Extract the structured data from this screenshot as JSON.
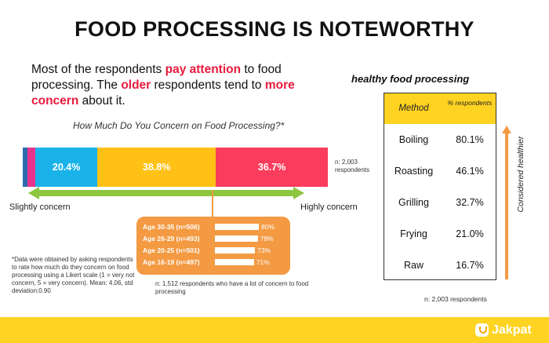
{
  "title": "FOOD PROCESSING IS NOTEWORTHY",
  "intro": {
    "p1": "Most of the respondents ",
    "h1": "pay attention",
    "p2": " to food processing. The ",
    "h2": "older",
    "p3": " respondents tend to ",
    "h3": "more concern",
    "p4": " about it."
  },
  "chart_data": [
    {
      "type": "bar",
      "title": "How Much Do You Concern on Food Processing?*",
      "stacked": true,
      "orientation": "horizontal",
      "series": [
        {
          "name": "",
          "value": 1.5,
          "label": "",
          "color": "#2b6cb0"
        },
        {
          "name": "",
          "value": 2.6,
          "label": "",
          "color": "#e8348d"
        },
        {
          "name": "",
          "value": 20.4,
          "label": "20.4%",
          "color": "#1ab3e9"
        },
        {
          "name": "",
          "value": 38.8,
          "label": "38.8%",
          "color": "#ffc115"
        },
        {
          "name": "",
          "value": 36.7,
          "label": "36.7%",
          "color": "#fb3c5c"
        }
      ],
      "note": "n: 2,003 respondents",
      "scale_left": "Slightly concern",
      "scale_right": "Highly concern"
    },
    {
      "type": "bar",
      "orientation": "horizontal",
      "categories": [
        "Age 30-35 (n=506)",
        "Age 26-29 (n=493)",
        "Age 20-25 (n=501)",
        "Age 16-19 (n=497)"
      ],
      "values": [
        80,
        78,
        73,
        71
      ],
      "labels": [
        "80%",
        "78%",
        "73%",
        "71%"
      ],
      "note": "n: 1,512 respondents who have a lot of concern to food processing"
    },
    {
      "type": "table",
      "title": "healthy food processing",
      "columns": [
        "Method",
        "% respondents"
      ],
      "rows": [
        {
          "method": "Boiling",
          "pct": "80.1%"
        },
        {
          "method": "Roasting",
          "pct": "46.1%"
        },
        {
          "method": "Grilling",
          "pct": "32.7%"
        },
        {
          "method": "Frying",
          "pct": "21.0%"
        },
        {
          "method": "Raw",
          "pct": "16.7%"
        }
      ],
      "side_label": "Considered healthier",
      "note": "n: 2,003 respondents"
    }
  ],
  "footnote": "*Data were obtained by asking respondents to rate how much do they concern on food processing using a Likert scale (1 = very not concern, 5 = very concern). Mean: 4.06, std deviation:0.90",
  "brand": "Jakpat",
  "colors": {
    "accent": "#ffd322",
    "highlight": "#e8193c",
    "age_box": "#f39a43",
    "arrow": "#8dc63f",
    "healthier_arrow": "#f39a43"
  }
}
